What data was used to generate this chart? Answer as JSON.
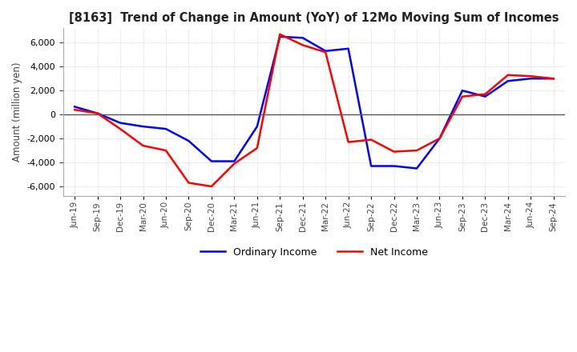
{
  "title": "[8163]  Trend of Change in Amount (YoY) of 12Mo Moving Sum of Incomes",
  "ylabel": "Amount (million yen)",
  "ylim": [
    -6800,
    7200
  ],
  "yticks": [
    -6000,
    -4000,
    -2000,
    0,
    2000,
    4000,
    6000
  ],
  "background_color": "#ffffff",
  "grid_color": "#bbbbbb",
  "legend_labels": [
    "Ordinary Income",
    "Net Income"
  ],
  "line_colors": [
    "#0000ff",
    "#ff0000"
  ],
  "dates": [
    "Jun-19",
    "Sep-19",
    "Dec-19",
    "Mar-20",
    "Jun-20",
    "Sep-20",
    "Dec-20",
    "Mar-21",
    "Jun-21",
    "Sep-21",
    "Dec-21",
    "Mar-22",
    "Jun-22",
    "Sep-22",
    "Dec-22",
    "Mar-23",
    "Jun-23",
    "Sep-23",
    "Dec-23",
    "Mar-24",
    "Jun-24",
    "Sep-24"
  ],
  "ordinary_income": [
    650,
    100,
    -700,
    -1000,
    -1200,
    -2200,
    -3900,
    -3900,
    -1000,
    6500,
    6400,
    5300,
    5500,
    -4300,
    -4300,
    -4500,
    -2000,
    2000,
    1500,
    2800,
    3000,
    3000
  ],
  "net_income": [
    400,
    100,
    -1200,
    -2600,
    -3000,
    -5700,
    -6000,
    -4100,
    -2800,
    6700,
    5800,
    5200,
    -2300,
    -2100,
    -3100,
    -3000,
    -2000,
    1500,
    1700,
    3300,
    3200,
    3000
  ]
}
